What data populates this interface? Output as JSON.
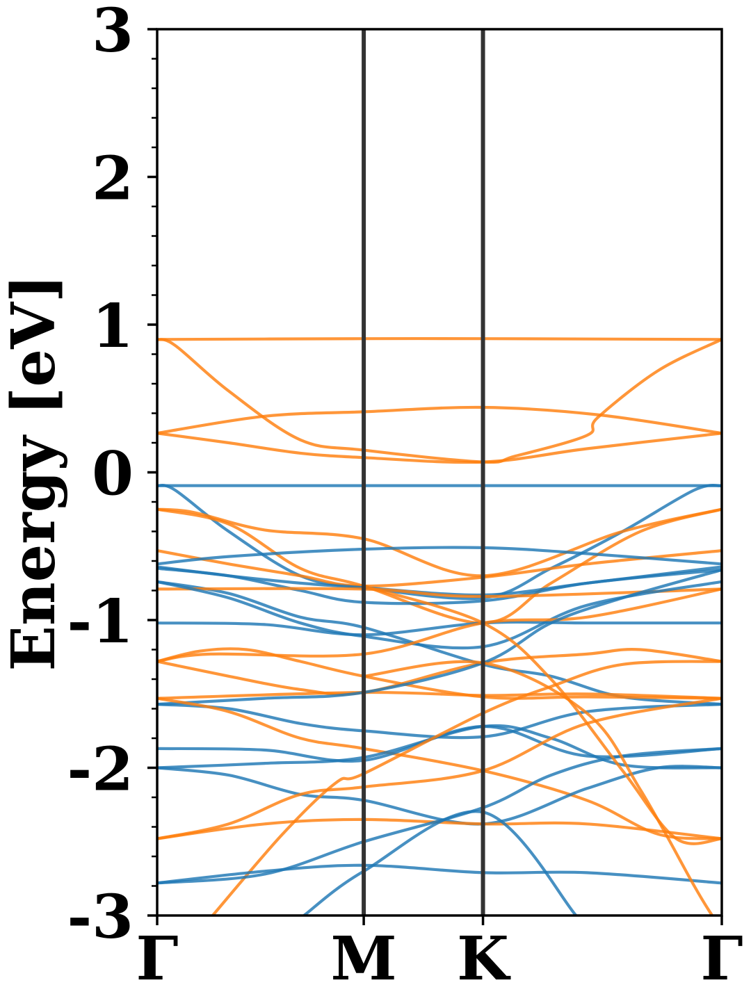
{
  "chart_data": {
    "type": "line",
    "title": "",
    "xlabel": "",
    "ylabel": "Energy [eV]",
    "ylim": [
      -3,
      3
    ],
    "yticks": [
      3,
      2,
      1,
      0,
      -1,
      -2,
      -3
    ],
    "ytick_labels": [
      "3",
      "2",
      "1",
      "0",
      "-1",
      "-2",
      "-3"
    ],
    "x_ticks": [
      {
        "label": "Γ",
        "k": 0
      },
      {
        "label": "M",
        "k": 0.577
      },
      {
        "label": "K",
        "k": 0.91
      },
      {
        "label": "Γ",
        "k": 1.577
      }
    ],
    "xlim": [
      0,
      1.577
    ],
    "grid": false,
    "legend": "none",
    "colors": {
      "spin_up": "#1f77b4",
      "spin_down": "#ff7f0e",
      "kpath_line": "#333333"
    },
    "series": [
      {
        "color": "#ff7f0e",
        "points": [
          [
            0,
            0.9
          ],
          [
            0.577,
            0.905
          ],
          [
            0.91,
            0.905
          ],
          [
            1.577,
            0.9
          ]
        ]
      },
      {
        "color": "#ff7f0e",
        "points": [
          [
            0,
            0.9
          ],
          [
            0.05,
            0.86
          ],
          [
            0.2,
            0.55
          ],
          [
            0.4,
            0.22
          ],
          [
            0.577,
            0.15
          ],
          [
            0.91,
            0.07
          ],
          [
            1.0,
            0.11
          ],
          [
            1.2,
            0.25
          ],
          [
            1.23,
            0.37
          ],
          [
            1.4,
            0.69
          ],
          [
            1.577,
            0.9
          ]
        ]
      },
      {
        "color": "#ff7f0e",
        "points": [
          [
            0,
            0.265
          ],
          [
            0.3,
            0.38
          ],
          [
            0.577,
            0.41
          ],
          [
            0.91,
            0.44
          ],
          [
            1.23,
            0.39
          ],
          [
            1.577,
            0.265
          ]
        ]
      },
      {
        "color": "#ff7f0e",
        "points": [
          [
            0,
            0.265
          ],
          [
            0.2,
            0.2
          ],
          [
            0.4,
            0.13
          ],
          [
            0.577,
            0.1
          ],
          [
            0.91,
            0.07
          ],
          [
            1.2,
            0.16
          ],
          [
            1.577,
            0.265
          ]
        ]
      },
      {
        "color": "#1f77b4",
        "points": [
          [
            0,
            -0.09
          ],
          [
            0.577,
            -0.09
          ],
          [
            0.91,
            -0.09
          ],
          [
            1.577,
            -0.09
          ]
        ]
      },
      {
        "color": "#1f77b4",
        "points": [
          [
            0,
            -0.09
          ],
          [
            0.05,
            -0.12
          ],
          [
            0.2,
            -0.4
          ],
          [
            0.4,
            -0.7
          ],
          [
            0.577,
            -0.78
          ],
          [
            0.91,
            -0.85
          ],
          [
            1.1,
            -0.65
          ],
          [
            1.3,
            -0.4
          ],
          [
            1.5,
            -0.12
          ],
          [
            1.577,
            -0.09
          ]
        ]
      },
      {
        "color": "#ff7f0e",
        "points": [
          [
            0,
            -0.25
          ],
          [
            0.1,
            -0.27
          ],
          [
            0.3,
            -0.39
          ],
          [
            0.577,
            -0.45
          ],
          [
            0.91,
            -0.7
          ],
          [
            1.3,
            -0.4
          ],
          [
            1.577,
            -0.25
          ]
        ]
      },
      {
        "color": "#ff7f0e",
        "points": [
          [
            0,
            -0.25
          ],
          [
            0.2,
            -0.35
          ],
          [
            0.4,
            -0.65
          ],
          [
            0.577,
            -0.77
          ],
          [
            0.91,
            -1.02
          ],
          [
            1.1,
            -0.75
          ],
          [
            1.35,
            -0.4
          ],
          [
            1.577,
            -0.25
          ]
        ]
      },
      {
        "color": "#ff7f0e",
        "points": [
          [
            0,
            -0.53
          ],
          [
            0.2,
            -0.62
          ],
          [
            0.4,
            -0.7
          ],
          [
            0.577,
            -0.77
          ],
          [
            0.91,
            -0.71
          ],
          [
            1.2,
            -0.62
          ],
          [
            1.577,
            -0.53
          ]
        ]
      },
      {
        "color": "#1f77b4",
        "points": [
          [
            0,
            -0.62
          ],
          [
            0.2,
            -0.57
          ],
          [
            0.577,
            -0.52
          ],
          [
            0.91,
            -0.51
          ],
          [
            1.2,
            -0.55
          ],
          [
            1.577,
            -0.62
          ]
        ]
      },
      {
        "color": "#1f77b4",
        "points": [
          [
            0,
            -0.64
          ],
          [
            0.2,
            -0.7
          ],
          [
            0.4,
            -0.75
          ],
          [
            0.577,
            -0.78
          ],
          [
            0.91,
            -0.83
          ],
          [
            1.2,
            -0.75
          ],
          [
            1.577,
            -0.64
          ]
        ]
      },
      {
        "color": "#1f77b4",
        "points": [
          [
            0,
            -0.74
          ],
          [
            0.2,
            -0.82
          ],
          [
            0.4,
            -0.98
          ],
          [
            0.577,
            -1.05
          ],
          [
            0.91,
            -1.3
          ],
          [
            1.1,
            -1.38
          ],
          [
            1.3,
            -1.52
          ],
          [
            1.577,
            -1.57
          ]
        ]
      },
      {
        "color": "#1f77b4",
        "points": [
          [
            0,
            -0.65
          ],
          [
            0.2,
            -0.7
          ],
          [
            0.4,
            -0.8
          ],
          [
            0.577,
            -0.88
          ],
          [
            0.91,
            -0.87
          ],
          [
            1.2,
            -0.75
          ],
          [
            1.577,
            -0.66
          ]
        ]
      },
      {
        "color": "#ff7f0e",
        "points": [
          [
            0,
            -0.79
          ],
          [
            0.577,
            -0.79
          ],
          [
            0.91,
            -0.84
          ],
          [
            1.577,
            -0.79
          ]
        ]
      },
      {
        "color": "#1f77b4",
        "points": [
          [
            0,
            -1.02
          ],
          [
            0.3,
            -1.03
          ],
          [
            0.577,
            -1.1
          ],
          [
            0.91,
            -1.02
          ],
          [
            1.2,
            -1.02
          ],
          [
            1.577,
            -1.02
          ]
        ]
      },
      {
        "color": "#1f77b4",
        "points": [
          [
            0,
            -0.74
          ],
          [
            0.2,
            -0.85
          ],
          [
            0.4,
            -1.02
          ],
          [
            0.577,
            -1.11
          ],
          [
            0.91,
            -1.18
          ],
          [
            1.2,
            -0.9
          ],
          [
            1.577,
            -0.74
          ]
        ]
      },
      {
        "color": "#ff7f0e",
        "points": [
          [
            0,
            -1.28
          ],
          [
            0.15,
            -1.23
          ],
          [
            0.577,
            -1.23
          ],
          [
            0.91,
            -1.02
          ],
          [
            1.2,
            -0.98
          ],
          [
            1.577,
            -0.79
          ]
        ]
      },
      {
        "color": "#ff7f0e",
        "points": [
          [
            0,
            -1.28
          ],
          [
            0.12,
            -1.21
          ],
          [
            0.25,
            -1.2
          ],
          [
            0.4,
            -1.28
          ],
          [
            0.577,
            -1.38
          ],
          [
            0.91,
            -1.52
          ],
          [
            1.2,
            -1.52
          ],
          [
            1.577,
            -1.53
          ]
        ]
      },
      {
        "color": "#ff7f0e",
        "points": [
          [
            0,
            -1.28
          ],
          [
            0.2,
            -1.38
          ],
          [
            0.4,
            -1.47
          ],
          [
            0.577,
            -1.49
          ],
          [
            0.91,
            -1.29
          ],
          [
            1.2,
            -1.23
          ],
          [
            1.35,
            -1.2
          ],
          [
            1.577,
            -1.28
          ]
        ]
      },
      {
        "color": "#ff7f0e",
        "points": [
          [
            0,
            -1.53
          ],
          [
            0.577,
            -1.49
          ],
          [
            0.91,
            -1.51
          ],
          [
            1.2,
            -1.5
          ],
          [
            1.577,
            -1.53
          ]
        ]
      },
      {
        "color": "#1f77b4",
        "points": [
          [
            0,
            -1.57
          ],
          [
            0.3,
            -1.53
          ],
          [
            0.577,
            -1.49
          ],
          [
            0.91,
            -1.29
          ],
          [
            1.1,
            -1.02
          ],
          [
            1.3,
            -0.85
          ],
          [
            1.577,
            -0.66
          ]
        ]
      },
      {
        "color": "#1f77b4",
        "points": [
          [
            0,
            -1.57
          ],
          [
            0.2,
            -1.6
          ],
          [
            0.4,
            -1.7
          ],
          [
            0.577,
            -1.75
          ],
          [
            0.91,
            -1.79
          ],
          [
            1.2,
            -1.62
          ],
          [
            1.577,
            -1.57
          ]
        ]
      },
      {
        "color": "#ff7f0e",
        "points": [
          [
            0,
            -1.53
          ],
          [
            0.2,
            -1.62
          ],
          [
            0.4,
            -1.8
          ],
          [
            0.577,
            -1.87
          ],
          [
            0.91,
            -2.02
          ],
          [
            1.2,
            -2.22
          ],
          [
            1.4,
            -2.45
          ],
          [
            1.577,
            -2.48
          ]
        ]
      },
      {
        "color": "#1f77b4",
        "points": [
          [
            0,
            -1.87
          ],
          [
            0.3,
            -1.88
          ],
          [
            0.577,
            -1.95
          ],
          [
            0.91,
            -1.72
          ],
          [
            1.2,
            -1.92
          ],
          [
            1.577,
            -1.87
          ]
        ]
      },
      {
        "color": "#1f77b4",
        "points": [
          [
            0,
            -2.0
          ],
          [
            0.3,
            -1.97
          ],
          [
            0.577,
            -1.93
          ],
          [
            0.91,
            -1.72
          ],
          [
            1.1,
            -1.8
          ],
          [
            1.3,
            -1.98
          ],
          [
            1.577,
            -2.0
          ]
        ]
      },
      {
        "color": "#1f77b4",
        "points": [
          [
            0,
            -2.0
          ],
          [
            0.2,
            -2.05
          ],
          [
            0.4,
            -2.18
          ],
          [
            0.577,
            -2.22
          ],
          [
            0.91,
            -2.38
          ],
          [
            1.2,
            -2.14
          ],
          [
            1.4,
            -2.0
          ],
          [
            1.577,
            -2.0
          ]
        ]
      },
      {
        "color": "#ff7f0e",
        "points": [
          [
            0,
            -2.48
          ],
          [
            0.3,
            -2.38
          ],
          [
            0.577,
            -2.35
          ],
          [
            0.91,
            -2.38
          ],
          [
            1.2,
            -2.38
          ],
          [
            1.577,
            -2.48
          ]
        ]
      },
      {
        "color": "#ff7f0e",
        "points": [
          [
            0,
            -2.48
          ],
          [
            0.2,
            -2.38
          ],
          [
            0.4,
            -2.18
          ],
          [
            0.577,
            -2.13
          ],
          [
            0.91,
            -2.02
          ],
          [
            1.2,
            -1.7
          ],
          [
            1.577,
            -1.53
          ]
        ]
      },
      {
        "color": "#ff7f0e",
        "points": [
          [
            0.155,
            -3.0
          ],
          [
            0.35,
            -2.45
          ],
          [
            0.5,
            -2.1
          ],
          [
            0.577,
            -2.04
          ],
          [
            0.91,
            -1.63
          ],
          [
            1.1,
            -1.45
          ],
          [
            1.3,
            -1.3
          ],
          [
            1.577,
            -1.28
          ]
        ]
      },
      {
        "color": "#1f77b4",
        "points": [
          [
            0,
            -2.78
          ],
          [
            0.3,
            -2.72
          ],
          [
            0.577,
            -2.5
          ],
          [
            0.91,
            -2.27
          ],
          [
            1.1,
            -2.05
          ],
          [
            1.3,
            -1.92
          ],
          [
            1.577,
            -1.87
          ]
        ]
      },
      {
        "color": "#1f77b4",
        "points": [
          [
            0,
            -2.78
          ],
          [
            0.3,
            -2.7
          ],
          [
            0.577,
            -2.66
          ],
          [
            0.91,
            -2.71
          ],
          [
            1.2,
            -2.71
          ],
          [
            1.577,
            -2.78
          ]
        ]
      },
      {
        "color": "#1f77b4",
        "points": [
          [
            0.41,
            -3.0
          ],
          [
            0.577,
            -2.7
          ],
          [
            0.91,
            -2.3
          ],
          [
            1.17,
            -3.0
          ]
        ]
      },
      {
        "color": "#ff7f0e",
        "points": [
          [
            0.577,
            -1.38
          ],
          [
            0.91,
            -1.29
          ],
          [
            1.2,
            -1.63
          ],
          [
            1.35,
            -2.15
          ],
          [
            1.5,
            -2.8
          ],
          [
            1.55,
            -3.0
          ]
        ]
      },
      {
        "color": "#ff7f0e",
        "points": [
          [
            0.577,
            -0.77
          ],
          [
            0.91,
            -1.02
          ],
          [
            1.1,
            -1.4
          ],
          [
            1.3,
            -2.02
          ],
          [
            1.45,
            -2.48
          ],
          [
            1.577,
            -2.48
          ]
        ]
      }
    ]
  }
}
